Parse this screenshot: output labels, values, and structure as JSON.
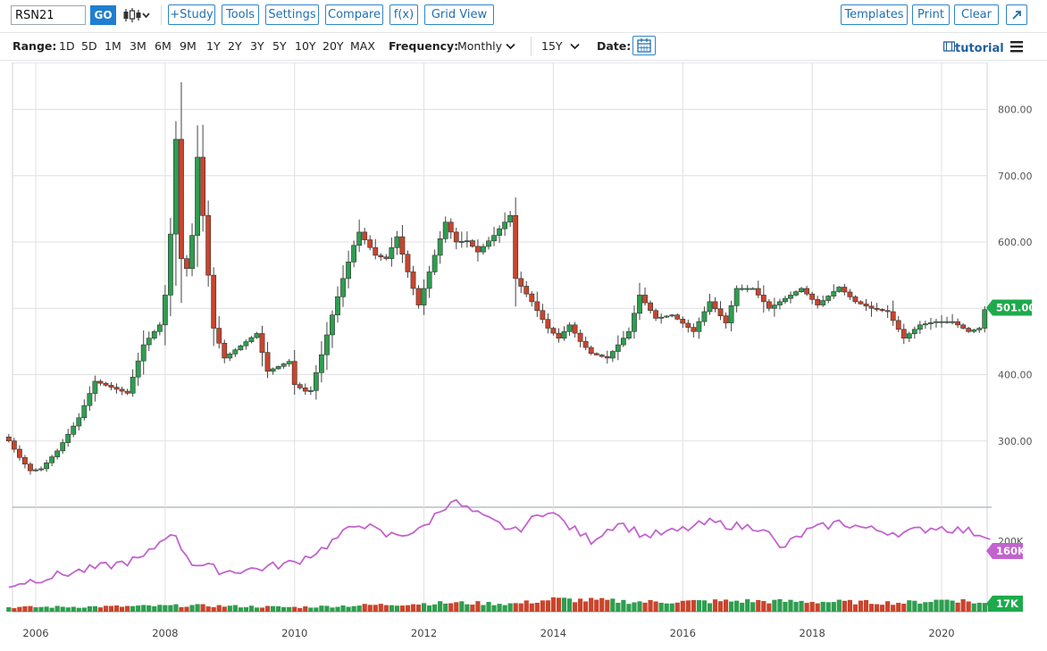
{
  "toolbar": {
    "symbol": "RSN21",
    "go_label": "GO",
    "study_label": "+Study",
    "tools_label": "Tools",
    "settings_label": "Settings",
    "compare_label": "Compare",
    "fx_label": "f(x)",
    "gridview_label": "Grid View",
    "templates_label": "Templates",
    "print_label": "Print",
    "clear_label": "Clear",
    "expand_icon": "expand-arrow-icon"
  },
  "rangebar": {
    "range_label": "Range:",
    "ranges": [
      "1D",
      "5D",
      "1M",
      "3M",
      "6M",
      "9M",
      "1Y",
      "2Y",
      "3Y",
      "5Y",
      "10Y",
      "20Y",
      "MAX"
    ],
    "frequency_label": "Frequency:",
    "frequency_value": "Monthly",
    "period_value": "15Y",
    "date_label": "Date:",
    "calendar_icon": "calendar-icon",
    "tutorial_label": "tutorial",
    "menu_icon": "hamburger-menu-icon"
  },
  "colors": {
    "up": "#2e9e4f",
    "down": "#c9452c",
    "avg": "#c363cf",
    "last_price": "#1eaa4c",
    "last_volume": "#1eaa4c",
    "grid": "#e0e0e0"
  },
  "chart_data": {
    "type": "candlestick",
    "frequency": "Monthly",
    "x_tick_labels": [
      "2006",
      "2008",
      "2010",
      "2012",
      "2014",
      "2016",
      "2018",
      "2020"
    ],
    "price_axis": {
      "ticks": [
        300,
        400,
        500,
        600,
        700,
        800
      ],
      "tick_labels": [
        "300.00",
        "400.00",
        "500.00",
        "600.00",
        "700.00",
        "800.00"
      ],
      "range": [
        200,
        860
      ]
    },
    "volume_axis": {
      "tick_label": "200K",
      "tick_value": 200000
    },
    "last_price_label": "501.00",
    "last_price": 501.0,
    "last_avg_label": "160K",
    "last_avg_value": 160000,
    "last_volume_label": "17K",
    "last_volume_value": 17000,
    "anchors": [
      [
        "2005-08",
        300
      ],
      [
        "2005-10",
        275
      ],
      [
        "2005-12",
        255
      ],
      [
        "2006-02",
        258
      ],
      [
        "2006-05",
        285
      ],
      [
        "2006-09",
        335
      ],
      [
        "2006-12",
        390
      ],
      [
        "2007-05",
        375
      ],
      [
        "2007-06",
        372
      ],
      [
        "2007-09",
        445
      ],
      [
        "2007-12",
        475
      ],
      [
        "2008-01",
        520
      ],
      [
        "2008-02",
        612
      ],
      [
        "2008-03",
        755
      ],
      [
        "2008-04",
        575
      ],
      [
        "2008-05",
        560
      ],
      [
        "2008-06",
        610
      ],
      [
        "2008-07",
        728
      ],
      [
        "2008-08",
        640
      ],
      [
        "2008-09",
        550
      ],
      [
        "2008-10",
        470
      ],
      [
        "2008-12",
        425
      ],
      [
        "2009-06",
        462
      ],
      [
        "2009-08",
        405
      ],
      [
        "2009-12",
        420
      ],
      [
        "2010-01",
        385
      ],
      [
        "2010-03",
        375
      ],
      [
        "2010-04",
        376
      ],
      [
        "2010-06",
        430
      ],
      [
        "2010-08",
        490
      ],
      [
        "2010-10",
        545
      ],
      [
        "2010-12",
        595
      ],
      [
        "2011-01",
        615
      ],
      [
        "2011-04",
        580
      ],
      [
        "2011-06",
        575
      ],
      [
        "2011-08",
        608
      ],
      [
        "2011-10",
        555
      ],
      [
        "2011-12",
        505
      ],
      [
        "2012-03",
        580
      ],
      [
        "2012-05",
        630
      ],
      [
        "2012-07",
        600
      ],
      [
        "2012-09",
        602
      ],
      [
        "2012-11",
        585
      ],
      [
        "2013-02",
        610
      ],
      [
        "2013-05",
        640
      ],
      [
        "2013-06",
        545
      ],
      [
        "2013-09",
        510
      ],
      [
        "2013-12",
        470
      ],
      [
        "2014-02",
        455
      ],
      [
        "2014-04",
        475
      ],
      [
        "2014-06",
        450
      ],
      [
        "2014-08",
        432
      ],
      [
        "2014-11",
        425
      ],
      [
        "2015-03",
        465
      ],
      [
        "2015-05",
        520
      ],
      [
        "2015-08",
        485
      ],
      [
        "2015-11",
        490
      ],
      [
        "2016-03",
        465
      ],
      [
        "2016-06",
        510
      ],
      [
        "2016-09",
        478
      ],
      [
        "2016-11",
        530
      ],
      [
        "2017-02",
        530
      ],
      [
        "2017-05",
        500
      ],
      [
        "2017-08",
        515
      ],
      [
        "2017-11",
        530
      ],
      [
        "2018-02",
        505
      ],
      [
        "2018-06",
        532
      ],
      [
        "2018-09",
        510
      ],
      [
        "2018-12",
        500
      ],
      [
        "2019-03",
        495
      ],
      [
        "2019-06",
        455
      ],
      [
        "2019-09",
        475
      ],
      [
        "2019-12",
        480
      ],
      [
        "2020-03",
        480
      ],
      [
        "2020-06",
        465
      ],
      [
        "2020-08",
        470
      ],
      [
        "2020-09",
        498
      ],
      [
        "2020-10",
        501
      ]
    ],
    "volume_average_anchors": [
      [
        "2005-08",
        30
      ],
      [
        "2006-06",
        42
      ],
      [
        "2007-03",
        52
      ],
      [
        "2007-09",
        60
      ],
      [
        "2008-02",
        90
      ],
      [
        "2008-06",
        55
      ],
      [
        "2008-12",
        45
      ],
      [
        "2009-06",
        48
      ],
      [
        "2010-01",
        55
      ],
      [
        "2010-06",
        70
      ],
      [
        "2011-01",
        100
      ],
      [
        "2011-06",
        85
      ],
      [
        "2011-12",
        90
      ],
      [
        "2012-06",
        125
      ],
      [
        "2012-12",
        105
      ],
      [
        "2013-06",
        90
      ],
      [
        "2013-12",
        115
      ],
      [
        "2014-04",
        95
      ],
      [
        "2014-08",
        80
      ],
      [
        "2015-01",
        100
      ],
      [
        "2015-06",
        85
      ],
      [
        "2015-12",
        90
      ],
      [
        "2016-06",
        100
      ],
      [
        "2016-12",
        95
      ],
      [
        "2017-04",
        95
      ],
      [
        "2017-07",
        70
      ],
      [
        "2017-12",
        90
      ],
      [
        "2018-06",
        100
      ],
      [
        "2018-12",
        92
      ],
      [
        "2019-06",
        88
      ],
      [
        "2019-12",
        95
      ],
      [
        "2020-06",
        90
      ],
      [
        "2020-09",
        86
      ]
    ],
    "volume_bar_anchors": [
      [
        "2005-08",
        5
      ],
      [
        "2007-06",
        6
      ],
      [
        "2008-06",
        7
      ],
      [
        "2010-01",
        5
      ],
      [
        "2011-06",
        8
      ],
      [
        "2012-06",
        10
      ],
      [
        "2013-06",
        9
      ],
      [
        "2014-01",
        14
      ],
      [
        "2015-06",
        11
      ],
      [
        "2016-12",
        12
      ],
      [
        "2018-06",
        11
      ],
      [
        "2019-06",
        10
      ],
      [
        "2020-03",
        14
      ],
      [
        "2020-09",
        9
      ]
    ]
  }
}
